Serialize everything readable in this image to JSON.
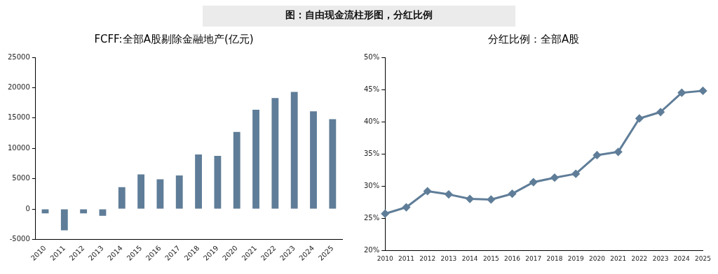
{
  "chart_data": [
    {
      "type": "other",
      "title": "图：自由现金流柱形图，分红比例"
    },
    {
      "type": "bar",
      "title": "FCFF:全部A股剔除金融地产(亿元)",
      "categories": [
        "2010",
        "2011",
        "2012",
        "2013",
        "2014",
        "2015",
        "2016",
        "2017",
        "2018",
        "2019",
        "2020",
        "2021",
        "2022",
        "2023",
        "2024",
        "2025"
      ],
      "values": [
        -700,
        -3500,
        -700,
        -1100,
        3600,
        5700,
        4900,
        5550,
        9000,
        8750,
        12700,
        16350,
        18300,
        19300,
        16100,
        14800
      ],
      "color": "#5f7d98",
      "ylim": [
        -5000,
        25000
      ],
      "yticks": [
        -5000,
        0,
        5000,
        10000,
        15000,
        20000,
        25000
      ],
      "grid": false,
      "legend": false
    },
    {
      "type": "line",
      "title": "分红比例：全部A股",
      "categories": [
        "2010",
        "2011",
        "2012",
        "2013",
        "2014",
        "2015",
        "2016",
        "2017",
        "2018",
        "2019",
        "2020",
        "2021",
        "2022",
        "2023",
        "2024",
        "2025"
      ],
      "values": [
        25.7,
        26.7,
        29.2,
        28.7,
        28.0,
        27.9,
        28.8,
        30.6,
        31.3,
        31.9,
        34.8,
        35.3,
        40.5,
        41.5,
        44.5,
        44.8
      ],
      "color": "#5f7d98",
      "marker": "diamond",
      "ylim": [
        20,
        50
      ],
      "yticks": [
        {
          "value": 20,
          "label": "20%"
        },
        {
          "value": 25,
          "label": "25%"
        },
        {
          "value": 30,
          "label": "30%"
        },
        {
          "value": 35,
          "label": "35%"
        },
        {
          "value": 40,
          "label": "40%"
        },
        {
          "value": 45,
          "label": "45%"
        },
        {
          "value": 50,
          "label": "50%"
        }
      ],
      "grid": false,
      "legend": false
    }
  ]
}
